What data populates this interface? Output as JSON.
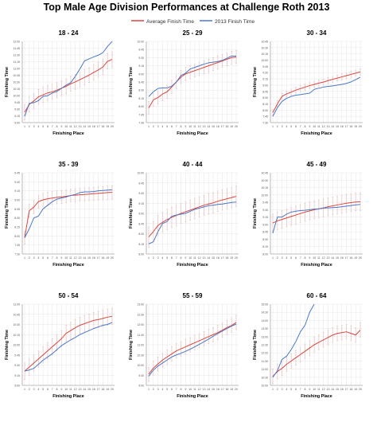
{
  "title": "Top Male Age Division Performances at Challenge Roth 2013",
  "legend": {
    "entries": [
      {
        "label": "Average Finish Time",
        "color": "#d9473f"
      },
      {
        "label": "2013 Finish Time",
        "color": "#4a78c8"
      }
    ]
  },
  "colors": {
    "average": "#d9473f",
    "finish2013": "#4a78c8",
    "errorbar": "#e4b6b3",
    "grid": "#e6e6e6",
    "axis": "#888888"
  },
  "chart_data": [
    {
      "type": "line",
      "title": "18 - 24",
      "xlabel": "Finishing Place",
      "ylabel": "Finishing Time",
      "x": [
        1,
        2,
        3,
        4,
        5,
        6,
        7,
        8,
        9,
        10,
        11,
        12,
        13,
        14,
        15,
        16,
        17,
        18,
        19,
        20
      ],
      "y_ticks": [
        "9:00",
        "9:15",
        "9:30",
        "9:45",
        "10:00",
        "10:15",
        "10:30",
        "10:45",
        "11:00",
        "11:15",
        "11:30",
        "11:45",
        "12:00"
      ],
      "ylim": [
        8.75,
        12.0
      ],
      "grid": true,
      "series": [
        {
          "name": "Average Finish Time",
          "values": [
            9.17,
            9.48,
            9.62,
            9.78,
            9.86,
            9.94,
            9.98,
            10.05,
            10.13,
            10.2,
            10.3,
            10.38,
            10.47,
            10.56,
            10.65,
            10.76,
            10.86,
            10.98,
            11.2,
            11.28
          ]
        },
        {
          "name": "2013 Finish Time",
          "values": [
            9.0,
            9.52,
            9.55,
            9.63,
            9.8,
            9.83,
            9.93,
            10.0,
            10.12,
            10.25,
            10.35,
            10.6,
            10.9,
            11.22,
            11.3,
            11.38,
            11.45,
            11.55,
            11.8,
            12.0
          ]
        }
      ],
      "error_half": 0.3
    },
    {
      "type": "line",
      "title": "25 - 29",
      "xlabel": "Finishing Place",
      "ylabel": "Finishing Time",
      "x": [
        1,
        2,
        3,
        4,
        5,
        6,
        7,
        8,
        9,
        10,
        11,
        12,
        13,
        14,
        15,
        16,
        17,
        18,
        19,
        20
      ],
      "y_ticks": [
        "7:30",
        "7:45",
        "8:00",
        "8:15",
        "8:30",
        "8:45",
        "9:00",
        "9:15",
        "9:30",
        "9:45",
        "10:00"
      ],
      "ylim": [
        7.5,
        10.0
      ],
      "grid": true,
      "series": [
        {
          "name": "Average Finish Time",
          "values": [
            7.95,
            8.2,
            8.27,
            8.38,
            8.45,
            8.6,
            8.75,
            8.9,
            9.0,
            9.05,
            9.1,
            9.15,
            9.2,
            9.25,
            9.3,
            9.35,
            9.4,
            9.45,
            9.5,
            9.52
          ]
        },
        {
          "name": "2013 Finish Time",
          "values": [
            8.3,
            8.45,
            8.55,
            8.57,
            8.57,
            8.62,
            8.75,
            8.95,
            9.02,
            9.15,
            9.2,
            9.25,
            9.3,
            9.34,
            9.36,
            9.38,
            9.42,
            9.48,
            9.55,
            9.55
          ]
        }
      ],
      "error_half": 0.2
    },
    {
      "type": "line",
      "title": "30 - 34",
      "xlabel": "Finishing Place",
      "ylabel": "Finishing Time",
      "x": [
        1,
        2,
        3,
        4,
        5,
        6,
        7,
        8,
        9,
        10,
        11,
        12,
        13,
        14,
        15,
        16,
        17,
        18,
        19,
        20
      ],
      "y_ticks": [
        "7:30",
        "7:45",
        "8:00",
        "8:15",
        "8:30",
        "8:45",
        "9:00",
        "9:15",
        "9:30",
        "9:45",
        "10:00",
        "10:15",
        "10:30",
        "10:45"
      ],
      "ylim": [
        7.5,
        10.75
      ],
      "grid": true,
      "series": [
        {
          "name": "Average Finish Time",
          "values": [
            7.9,
            8.25,
            8.55,
            8.65,
            8.72,
            8.8,
            8.86,
            8.92,
            8.98,
            9.03,
            9.08,
            9.12,
            9.18,
            9.23,
            9.28,
            9.33,
            9.38,
            9.43,
            9.48,
            9.53
          ]
        },
        {
          "name": "2013 Finish Time",
          "values": [
            7.75,
            8.1,
            8.35,
            8.47,
            8.55,
            8.6,
            8.62,
            8.65,
            8.68,
            8.83,
            8.88,
            8.92,
            8.95,
            8.97,
            9.0,
            9.03,
            9.07,
            9.13,
            9.22,
            9.32
          ]
        }
      ],
      "error_half": 0.12
    },
    {
      "type": "line",
      "title": "35 - 39",
      "xlabel": "Finishing Place",
      "ylabel": "Finishing Time",
      "x": [
        1,
        2,
        3,
        4,
        5,
        6,
        7,
        8,
        9,
        10,
        11,
        12,
        13,
        14,
        15,
        16,
        17,
        18,
        19,
        20
      ],
      "y_ticks": [
        "7:30",
        "7:45",
        "8:00",
        "8:15",
        "8:30",
        "8:45",
        "9:00",
        "9:15",
        "9:30",
        "9:45"
      ],
      "ylim": [
        7.5,
        9.75
      ],
      "grid": true,
      "series": [
        {
          "name": "Average Finish Time",
          "values": [
            7.95,
            8.7,
            8.8,
            8.95,
            9.0,
            9.03,
            9.05,
            9.07,
            9.08,
            9.1,
            9.12,
            9.13,
            9.14,
            9.15,
            9.16,
            9.17,
            9.18,
            9.19,
            9.2,
            9.21
          ]
        },
        {
          "name": "2013 Finish Time",
          "values": [
            7.95,
            8.2,
            8.5,
            8.55,
            8.75,
            8.85,
            8.95,
            9.02,
            9.05,
            9.08,
            9.12,
            9.15,
            9.2,
            9.22,
            9.22,
            9.23,
            9.25,
            9.26,
            9.27,
            9.28
          ]
        }
      ],
      "error_half": 0.18
    },
    {
      "type": "line",
      "title": "40 - 44",
      "xlabel": "Finishing Place",
      "ylabel": "Finishing Time",
      "x": [
        1,
        2,
        3,
        4,
        5,
        6,
        7,
        8,
        9,
        10,
        11,
        12,
        13,
        14,
        15,
        16,
        17,
        18,
        19,
        20
      ],
      "y_ticks": [
        "8:00",
        "8:15",
        "8:30",
        "8:45",
        "9:00",
        "9:15",
        "9:30",
        "9:45",
        "10:00"
      ],
      "ylim": [
        8.0,
        10.0
      ],
      "grid": true,
      "series": [
        {
          "name": "Average Finish Time",
          "values": [
            8.42,
            8.55,
            8.7,
            8.78,
            8.85,
            8.9,
            8.95,
            9.0,
            9.04,
            9.08,
            9.12,
            9.16,
            9.2,
            9.23,
            9.26,
            9.3,
            9.33,
            9.36,
            9.39,
            9.42
          ]
        },
        {
          "name": "2013 Finish Time",
          "values": [
            8.25,
            8.3,
            8.55,
            8.75,
            8.8,
            8.93,
            8.96,
            8.98,
            9.0,
            9.05,
            9.1,
            9.13,
            9.16,
            9.19,
            9.2,
            9.22,
            9.23,
            9.25,
            9.27,
            9.28
          ]
        }
      ],
      "error_half": 0.25
    },
    {
      "type": "line",
      "title": "45 - 49",
      "xlabel": "Finishing Place",
      "ylabel": "Finishing Time",
      "x": [
        1,
        2,
        3,
        4,
        5,
        6,
        7,
        8,
        9,
        10,
        11,
        12,
        13,
        14,
        15,
        16,
        17,
        18,
        19,
        20
      ],
      "y_ticks": [
        "8:00",
        "8:15",
        "8:30",
        "8:45",
        "9:00",
        "9:15",
        "9:30",
        "9:45",
        "10:00",
        "10:15",
        "10:30",
        "10:45"
      ],
      "ylim": [
        8.0,
        10.75
      ],
      "grid": true,
      "series": [
        {
          "name": "Average Finish Time",
          "values": [
            9.05,
            9.12,
            9.17,
            9.22,
            9.27,
            9.32,
            9.37,
            9.42,
            9.46,
            9.5,
            9.53,
            9.56,
            9.6,
            9.63,
            9.66,
            9.69,
            9.72,
            9.74,
            9.76,
            9.77
          ]
        },
        {
          "name": "2013 Finish Time",
          "values": [
            8.7,
            9.25,
            9.25,
            9.35,
            9.42,
            9.45,
            9.47,
            9.48,
            9.5,
            9.52,
            9.53,
            9.55,
            9.56,
            9.57,
            9.58,
            9.6,
            9.62,
            9.64,
            9.66,
            9.68
          ]
        }
      ],
      "error_half": 0.3
    },
    {
      "type": "line",
      "title": "50 - 54",
      "xlabel": "Finishing Place",
      "ylabel": "Finishing Time",
      "x": [
        1,
        2,
        3,
        4,
        5,
        6,
        7,
        8,
        9,
        10,
        11,
        12,
        13,
        14,
        15,
        16,
        17,
        18,
        19,
        20
      ],
      "y_ticks": [
        "9:00",
        "9:15",
        "9:30",
        "9:45",
        "10:00",
        "10:15",
        "10:30",
        "10:45",
        "11:00"
      ],
      "ylim": [
        9.0,
        11.0
      ],
      "grid": true,
      "series": [
        {
          "name": "Average Finish Time",
          "values": [
            9.35,
            9.45,
            9.55,
            9.65,
            9.75,
            9.85,
            9.95,
            10.05,
            10.15,
            10.28,
            10.35,
            10.42,
            10.48,
            10.52,
            10.56,
            10.6,
            10.62,
            10.65,
            10.68,
            10.7
          ]
        },
        {
          "name": "2013 Finish Time",
          "values": [
            9.35,
            9.38,
            9.42,
            9.52,
            9.62,
            9.7,
            9.78,
            9.88,
            9.98,
            10.05,
            10.12,
            10.18,
            10.25,
            10.3,
            10.35,
            10.4,
            10.44,
            10.48,
            10.5,
            10.55
          ]
        }
      ],
      "error_half": 0.2
    },
    {
      "type": "line",
      "title": "55 - 59",
      "xlabel": "Finishing Place",
      "ylabel": "Finishing Time",
      "x": [
        1,
        2,
        3,
        4,
        5,
        6,
        7,
        8,
        9,
        10,
        11,
        12,
        13,
        14,
        15,
        16,
        17,
        18,
        19,
        20
      ],
      "y_ticks": [
        "9:00",
        "9:30",
        "10:00",
        "10:30",
        "11:00",
        "11:30",
        "12:00",
        "12:30",
        "13:00"
      ],
      "ylim": [
        9.0,
        13.0
      ],
      "grid": true,
      "series": [
        {
          "name": "Average Finish Time",
          "values": [
            9.55,
            9.85,
            10.05,
            10.25,
            10.4,
            10.55,
            10.7,
            10.8,
            10.9,
            11.0,
            11.1,
            11.2,
            11.3,
            11.4,
            11.5,
            11.6,
            11.72,
            11.85,
            11.95,
            12.1
          ]
        },
        {
          "name": "2013 Finish Time",
          "values": [
            9.45,
            9.75,
            9.95,
            10.1,
            10.25,
            10.4,
            10.5,
            10.58,
            10.68,
            10.78,
            10.9,
            11.02,
            11.15,
            11.28,
            11.42,
            11.55,
            11.68,
            11.8,
            11.92,
            12.02
          ]
        }
      ],
      "error_half": 0.35
    },
    {
      "type": "line",
      "title": "60 - 64",
      "xlabel": "Finishing Place",
      "ylabel": "Finishing Time",
      "x": [
        1,
        2,
        3,
        4,
        5,
        6,
        7,
        8,
        9,
        10,
        11,
        12,
        13,
        14,
        15,
        16,
        17,
        18,
        19,
        20
      ],
      "y_ticks": [
        "10:00",
        "10:30",
        "11:00",
        "11:30",
        "12:00",
        "12:30",
        "13:00",
        "13:30",
        "14:00",
        "14:30",
        "15:00"
      ],
      "ylim": [
        10.0,
        15.0
      ],
      "grid": true,
      "series": [
        {
          "name": "Average Finish Time",
          "values": [
            10.55,
            10.85,
            11.05,
            11.3,
            11.5,
            11.7,
            11.9,
            12.1,
            12.3,
            12.5,
            12.65,
            12.8,
            12.95,
            13.1,
            13.2,
            13.25,
            13.3,
            13.2,
            13.1,
            13.4
          ]
        },
        {
          "name": "2013 Finish Time",
          "values": [
            10.5,
            10.9,
            11.6,
            11.8,
            12.2,
            12.7,
            13.3,
            13.7,
            14.5,
            15.2,
            null,
            null,
            null,
            null,
            null,
            null,
            null,
            null,
            null,
            null
          ]
        }
      ],
      "error_half": 0.45
    }
  ]
}
